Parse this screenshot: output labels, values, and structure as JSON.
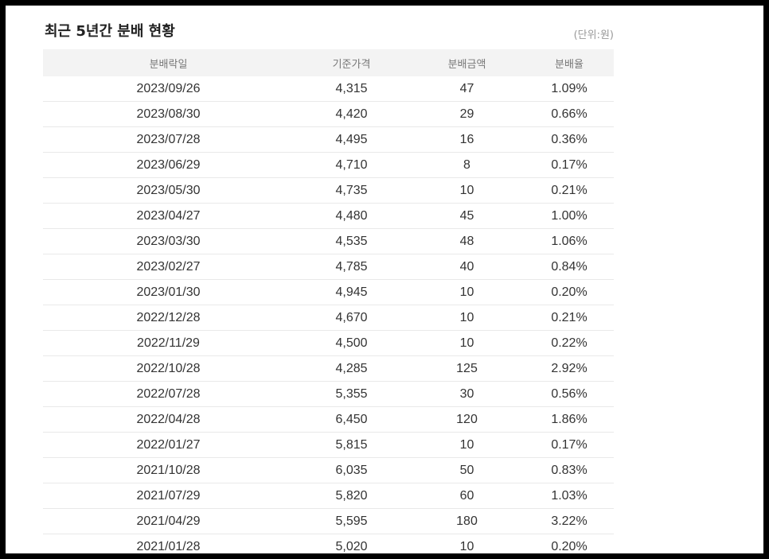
{
  "section": {
    "title": "최근 5년간 분배 현황",
    "unit_label": "(단위:원)"
  },
  "table": {
    "columns": [
      "분배락일",
      "기준가격",
      "분배금액",
      "분배율"
    ],
    "rows": [
      [
        "2023/09/26",
        "4,315",
        "47",
        "1.09%"
      ],
      [
        "2023/08/30",
        "4,420",
        "29",
        "0.66%"
      ],
      [
        "2023/07/28",
        "4,495",
        "16",
        "0.36%"
      ],
      [
        "2023/06/29",
        "4,710",
        "8",
        "0.17%"
      ],
      [
        "2023/05/30",
        "4,735",
        "10",
        "0.21%"
      ],
      [
        "2023/04/27",
        "4,480",
        "45",
        "1.00%"
      ],
      [
        "2023/03/30",
        "4,535",
        "48",
        "1.06%"
      ],
      [
        "2023/02/27",
        "4,785",
        "40",
        "0.84%"
      ],
      [
        "2023/01/30",
        "4,945",
        "10",
        "0.20%"
      ],
      [
        "2022/12/28",
        "4,670",
        "10",
        "0.21%"
      ],
      [
        "2022/11/29",
        "4,500",
        "10",
        "0.22%"
      ],
      [
        "2022/10/28",
        "4,285",
        "125",
        "2.92%"
      ],
      [
        "2022/07/28",
        "5,355",
        "30",
        "0.56%"
      ],
      [
        "2022/04/28",
        "6,450",
        "120",
        "1.86%"
      ],
      [
        "2022/01/27",
        "5,815",
        "10",
        "0.17%"
      ],
      [
        "2021/10/28",
        "6,035",
        "50",
        "0.83%"
      ],
      [
        "2021/07/29",
        "5,820",
        "60",
        "1.03%"
      ],
      [
        "2021/04/29",
        "5,595",
        "180",
        "3.22%"
      ],
      [
        "2021/01/28",
        "5,020",
        "10",
        "0.20%"
      ]
    ]
  }
}
